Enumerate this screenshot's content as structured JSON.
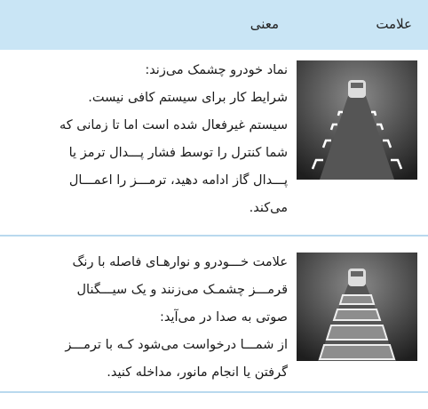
{
  "header": {
    "sign": "علامت",
    "meaning": "معنی"
  },
  "rows": [
    {
      "lines": [
        "نماد خودرو چشمک می‌زند:",
        "شرایط کار برای سیستم کافی نیست.",
        "سیستم غیرفعال شده است اما تا زمانی که",
        "شما کنترل را توسط فشار پـــدال ترمز یا",
        "پـــدال گاز ادامه دهید، ترمـــز را اعمـــال",
        "می‌کند."
      ]
    },
    {
      "lines": [
        "علامت خـــودرو و نوارهـای فاصله با رنگ",
        "قرمـــز چشمـک می‌زنند و یک سیـــگنال",
        "صوتی به صدا در می‌آید:",
        "از شمـــا درخواست می‌شود کـه با ترمـــز",
        "گرفتن یا انجام مانور، مداخله کنید."
      ]
    }
  ]
}
